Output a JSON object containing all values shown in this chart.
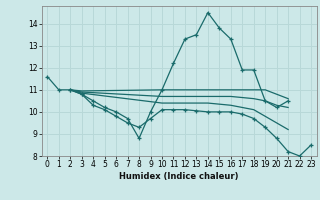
{
  "xlabel": "Humidex (Indice chaleur)",
  "background_color": "#cce8e8",
  "grid_color": "#b8d8d8",
  "line_color": "#1a6b6b",
  "xlim": [
    -0.5,
    23.5
  ],
  "ylim": [
    8,
    14.8
  ],
  "yticks": [
    8,
    9,
    10,
    11,
    12,
    13,
    14
  ],
  "xticks": [
    0,
    1,
    2,
    3,
    4,
    5,
    6,
    7,
    8,
    9,
    10,
    11,
    12,
    13,
    14,
    15,
    16,
    17,
    18,
    19,
    20,
    21,
    22,
    23
  ],
  "lines": [
    {
      "x": [
        0,
        1,
        2,
        3,
        4,
        5,
        6,
        7,
        8,
        9,
        10,
        11,
        12,
        13,
        14,
        15,
        16,
        17,
        18,
        19,
        20,
        21
      ],
      "y": [
        11.6,
        11.0,
        11.0,
        10.8,
        10.5,
        10.2,
        10.0,
        9.7,
        8.8,
        10.0,
        11.0,
        12.2,
        13.3,
        13.5,
        14.5,
        13.8,
        13.3,
        11.9,
        11.9,
        10.5,
        10.2,
        10.5
      ],
      "has_markers": true
    },
    {
      "x": [
        2,
        3,
        10,
        11,
        12,
        13,
        14,
        15,
        16,
        17,
        18,
        19,
        20,
        21
      ],
      "y": [
        11.0,
        10.95,
        11.0,
        11.0,
        11.0,
        11.0,
        11.0,
        11.0,
        11.0,
        11.0,
        11.0,
        11.0,
        10.8,
        10.6
      ],
      "has_markers": false
    },
    {
      "x": [
        2,
        3,
        10,
        11,
        12,
        13,
        14,
        15,
        16,
        17,
        18,
        19,
        20,
        21
      ],
      "y": [
        11.0,
        10.9,
        10.7,
        10.7,
        10.7,
        10.7,
        10.7,
        10.7,
        10.7,
        10.65,
        10.6,
        10.5,
        10.3,
        10.2
      ],
      "has_markers": false
    },
    {
      "x": [
        2,
        3,
        10,
        11,
        12,
        13,
        14,
        15,
        16,
        17,
        18,
        19,
        20,
        21
      ],
      "y": [
        11.0,
        10.85,
        10.4,
        10.4,
        10.4,
        10.4,
        10.4,
        10.35,
        10.3,
        10.2,
        10.1,
        9.8,
        9.5,
        9.2
      ],
      "has_markers": false
    },
    {
      "x": [
        2,
        3,
        4,
        5,
        6,
        7,
        8,
        9,
        10,
        11,
        12,
        13,
        14,
        15,
        16,
        17,
        18,
        19,
        20,
        21,
        22,
        23
      ],
      "y": [
        11.0,
        10.8,
        10.3,
        10.1,
        9.8,
        9.5,
        9.3,
        9.7,
        10.1,
        10.1,
        10.1,
        10.05,
        10.0,
        10.0,
        10.0,
        9.9,
        9.7,
        9.3,
        8.8,
        8.2,
        8.0,
        8.5
      ],
      "has_markers": true
    }
  ]
}
